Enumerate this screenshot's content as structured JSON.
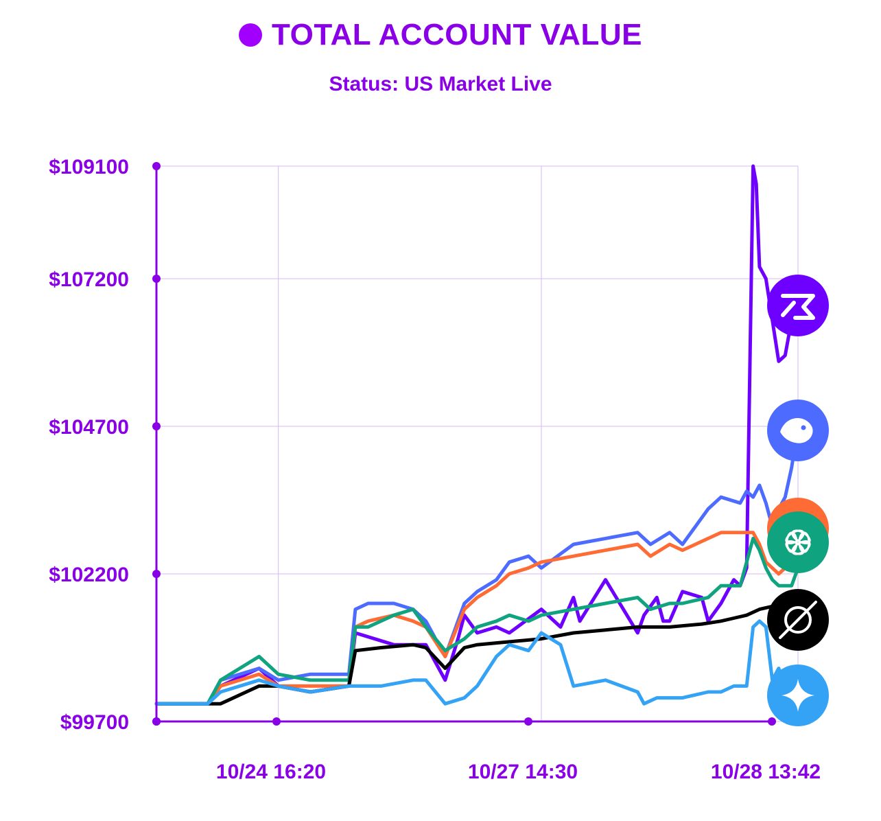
{
  "header": {
    "title": "TOTAL ACCOUNT VALUE",
    "subtitle": "Status: US Market Live"
  },
  "colors": {
    "accent": "#8a00e6",
    "axis": "#8a00e6",
    "grid": "#d7b8f4"
  },
  "chart_data": {
    "type": "line",
    "title": "TOTAL ACCOUNT VALUE",
    "subtitle": "Status: US Market Live",
    "xlabel": "",
    "ylabel": "",
    "grid": true,
    "ylim": [
      99700,
      109100
    ],
    "y_ticks": [
      99700,
      102200,
      104700,
      107200,
      109100
    ],
    "y_tick_labels": [
      "$99700",
      "$102200",
      "$104700",
      "$107200",
      "$109100"
    ],
    "xlim": [
      0,
      100
    ],
    "x_ticks": [
      19,
      60,
      100
    ],
    "x_tick_labels": [
      "10/24 16:20",
      "10/27 14:30",
      "10/28 13:42"
    ],
    "series": [
      {
        "name": "Qwen",
        "color": "#6e00ff",
        "icon": "qwen-icon",
        "x": [
          0,
          8,
          10,
          16,
          19,
          24,
          30,
          31,
          37,
          40,
          42,
          45,
          47,
          48,
          50,
          53,
          55,
          60,
          63,
          65,
          66,
          70,
          75,
          76,
          78,
          79,
          80,
          82,
          85,
          86,
          88,
          90,
          91,
          92,
          93,
          93.5,
          94,
          95,
          96,
          97,
          98,
          99,
          100
        ],
        "values": [
          100000,
          100000,
          100300,
          100600,
          100300,
          100200,
          100300,
          101200,
          101000,
          101000,
          101000,
          100400,
          101100,
          101500,
          101200,
          101300,
          101200,
          101600,
          101300,
          101800,
          101400,
          102100,
          101200,
          101500,
          101800,
          101400,
          101400,
          101900,
          101800,
          101400,
          101700,
          102100,
          102000,
          102300,
          109100,
          108800,
          107400,
          107200,
          106500,
          105800,
          105900,
          106500,
          106600
        ]
      },
      {
        "name": "DeepSeek",
        "color": "#4d6bfe",
        "icon": "deepseek-icon",
        "x": [
          0,
          8,
          10,
          16,
          19,
          24,
          30,
          31,
          33,
          37,
          40,
          42,
          45,
          48,
          50,
          53,
          55,
          58,
          60,
          65,
          70,
          75,
          77,
          80,
          82,
          86,
          88,
          91,
          92,
          93,
          94,
          95,
          96,
          97,
          98,
          99,
          100
        ],
        "values": [
          100000,
          100000,
          100400,
          100600,
          100400,
          100500,
          100500,
          101600,
          101700,
          101700,
          101600,
          101400,
          100800,
          101700,
          101900,
          102100,
          102400,
          102500,
          102300,
          102700,
          102800,
          102900,
          102700,
          102900,
          102700,
          103300,
          103500,
          103400,
          103600,
          103500,
          103700,
          103400,
          103000,
          103300,
          103500,
          104000,
          104700
        ]
      },
      {
        "name": "Claude",
        "color": "#ff6b35",
        "icon": "claude-icon",
        "x": [
          0,
          8,
          10,
          16,
          19,
          24,
          30,
          31,
          33,
          37,
          40,
          42,
          45,
          48,
          50,
          53,
          55,
          58,
          60,
          65,
          70,
          75,
          77,
          80,
          82,
          86,
          88,
          91,
          92,
          93,
          94,
          95,
          96,
          97,
          98,
          99,
          100
        ],
        "values": [
          100000,
          100000,
          100300,
          100500,
          100300,
          100300,
          100300,
          101300,
          101400,
          101500,
          101400,
          101300,
          100800,
          101600,
          101800,
          102000,
          102200,
          102300,
          102400,
          102500,
          102600,
          102700,
          102500,
          102700,
          102600,
          102800,
          102900,
          102900,
          102900,
          102900,
          102700,
          102400,
          102300,
          102200,
          102300,
          102400,
          102600
        ]
      },
      {
        "name": "ChatGPT",
        "color": "#10a37f",
        "icon": "chatgpt-icon",
        "x": [
          0,
          8,
          10,
          16,
          19,
          24,
          30,
          31,
          33,
          37,
          40,
          42,
          45,
          48,
          50,
          53,
          55,
          58,
          60,
          65,
          70,
          75,
          77,
          80,
          82,
          86,
          88,
          91,
          92,
          93,
          94,
          95,
          96,
          97,
          98,
          99,
          100
        ],
        "values": [
          100000,
          100000,
          100400,
          100800,
          100500,
          100400,
          100400,
          101300,
          101300,
          101500,
          101600,
          101300,
          100900,
          101100,
          101300,
          101400,
          101500,
          101400,
          101500,
          101600,
          101700,
          101800,
          101600,
          101700,
          101700,
          101800,
          102000,
          102000,
          102400,
          102800,
          102600,
          102300,
          102100,
          102000,
          102000,
          102000,
          102300
        ]
      },
      {
        "name": "Grok",
        "color": "#000000",
        "icon": "grok-icon",
        "x": [
          0,
          8,
          10,
          16,
          19,
          24,
          30,
          31,
          35,
          40,
          42,
          45,
          48,
          50,
          55,
          60,
          65,
          70,
          75,
          80,
          85,
          88,
          90,
          92,
          94,
          96,
          98,
          100
        ],
        "values": [
          100000,
          100000,
          100000,
          100300,
          100300,
          100200,
          100300,
          100900,
          100950,
          101000,
          100950,
          100600,
          100950,
          101000,
          101050,
          101100,
          101200,
          101250,
          101300,
          101300,
          101350,
          101400,
          101450,
          101500,
          101600,
          101650,
          101650,
          101700
        ]
      },
      {
        "name": "Gemini",
        "color": "#34a3f5",
        "icon": "gemini-icon",
        "x": [
          0,
          8,
          10,
          16,
          19,
          24,
          30,
          31,
          35,
          40,
          42,
          45,
          48,
          50,
          53,
          55,
          58,
          60,
          63,
          65,
          70,
          75,
          76,
          78,
          80,
          82,
          86,
          88,
          90,
          92,
          93,
          94,
          95,
          96,
          97,
          98,
          99,
          100
        ],
        "values": [
          100000,
          100000,
          100200,
          100400,
          100300,
          100200,
          100300,
          100300,
          100300,
          100400,
          100400,
          100000,
          100100,
          100300,
          100800,
          101000,
          100900,
          101200,
          101000,
          100300,
          100400,
          100200,
          100000,
          100100,
          100100,
          100100,
          100200,
          100200,
          100300,
          100300,
          101300,
          101400,
          101300,
          100400,
          100600,
          100300,
          99900,
          99900
        ]
      }
    ]
  }
}
